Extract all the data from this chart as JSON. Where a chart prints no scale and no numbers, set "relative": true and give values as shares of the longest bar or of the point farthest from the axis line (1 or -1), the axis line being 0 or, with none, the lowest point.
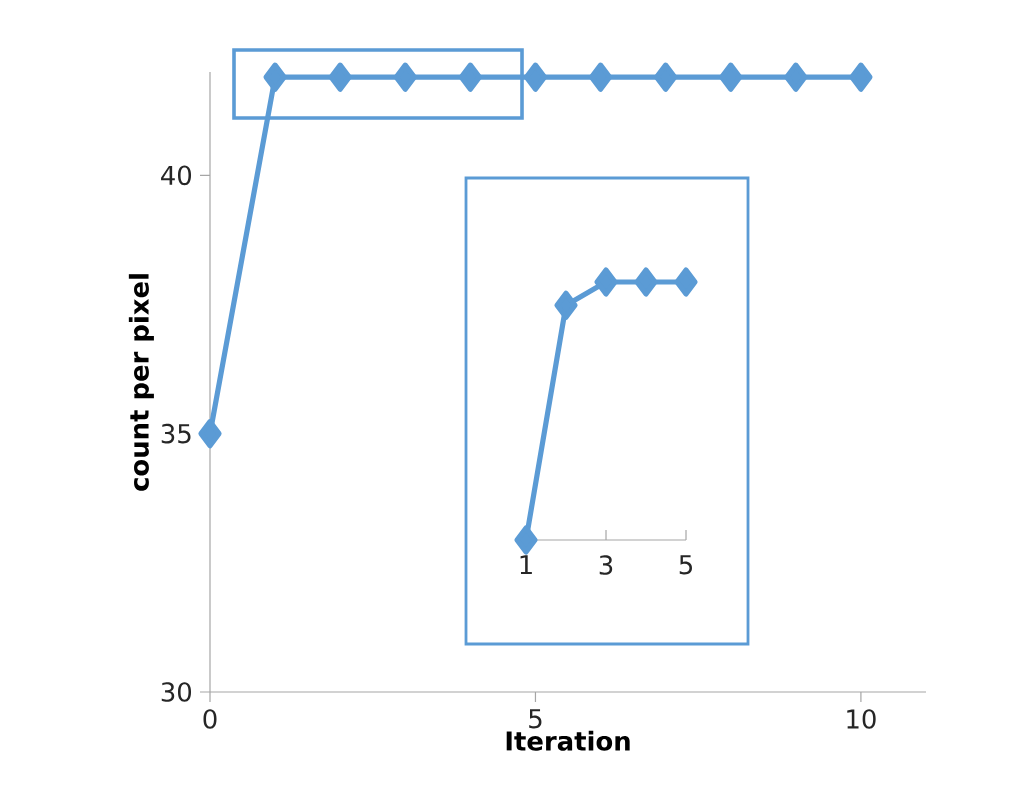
{
  "chart_data": [
    {
      "type": "line",
      "xlabel": "Iteration",
      "ylabel": "count per pixel",
      "x": [
        0,
        1,
        2,
        3,
        4,
        5,
        6,
        7,
        8,
        9,
        10
      ],
      "series": [
        {
          "color": "#5b9bd5",
          "values": [
            35,
            41.9,
            41.9,
            41.9,
            41.9,
            41.9,
            41.9,
            41.9,
            41.9,
            41.9,
            41.9
          ]
        }
      ],
      "xlim": [
        0,
        11
      ],
      "ylim": [
        30,
        42
      ],
      "xticks": [
        0,
        5,
        10
      ],
      "yticks": [
        30,
        35,
        40
      ],
      "marker": "diamond",
      "line_style": "solid"
    },
    {
      "type": "line",
      "relative": true,
      "x": [
        1,
        2,
        3,
        4,
        5
      ],
      "series": [
        {
          "color": "#5b9bd5",
          "values": [
            0,
            0.91,
            1,
            1,
            1
          ]
        }
      ],
      "xlim": [
        1,
        5
      ],
      "xticks": [
        1,
        3,
        5
      ],
      "tick_labels": "x",
      "marker": "diamond",
      "line_style": "solid"
    }
  ]
}
